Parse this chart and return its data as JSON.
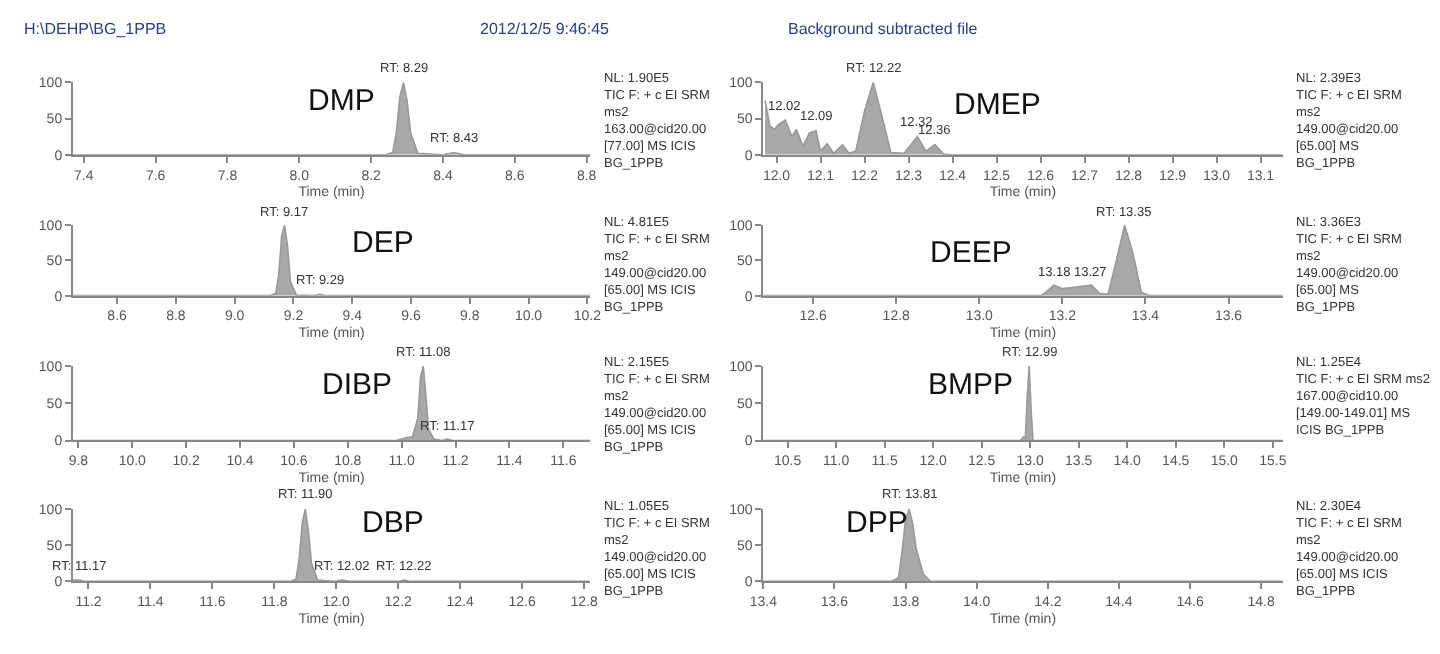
{
  "chart_data": [
    {
      "type": "area",
      "title": "DMP",
      "xlabel": "Time (min)",
      "xlim": [
        7.37,
        8.81
      ],
      "ylim": [
        0,
        100
      ],
      "yticks": [
        0,
        50,
        100
      ],
      "xticks": [
        7.4,
        7.6,
        7.8,
        {
          "value": 8,
          "label": "8.0"
        },
        8.2,
        8.4,
        8.6,
        8.8
      ],
      "x": [
        7.37,
        8.24,
        8.26,
        8.27,
        8.28,
        8.29,
        8.3,
        8.31,
        8.33,
        8.4,
        8.43,
        8.46,
        8.81
      ],
      "series": [
        {
          "color": "#999999",
          "values": [
            0,
            0,
            3,
            30,
            80,
            100,
            75,
            30,
            2,
            0,
            3,
            0,
            0
          ]
        }
      ],
      "annotations": [
        "H:\\DEHP\\BG_1PPB",
        "2012/12/5 9:46:45",
        {
          "text": "RT: 8.29",
          "x": 8.29,
          "y": 100
        },
        {
          "text": "RT: 8.43",
          "x": 8.43,
          "y": 3
        },
        "NL: 1.90E5\nTIC F: + c EI SRM\nms2\n163.00@cid20.00\n[77.00] MS ICIS\nBG_1PPB"
      ]
    },
    {
      "type": "area",
      "title": "DMEP",
      "xlabel": "Time (min)",
      "xlim": [
        11.97,
        13.15
      ],
      "ylim": [
        0,
        100
      ],
      "yticks": [
        0,
        50,
        100
      ],
      "xticks": [
        {
          "value": 12,
          "label": "12.0"
        },
        12.1,
        12.2,
        12.3,
        12.4,
        12.5,
        12.6,
        12.7,
        12.8,
        12.9,
        {
          "value": 13,
          "label": "13.0"
        },
        13.1
      ],
      "x": [
        11.974,
        11.985,
        11.995,
        12.005,
        12.02,
        12.035,
        12.045,
        12.06,
        12.075,
        12.09,
        12.1,
        12.115,
        12.13,
        12.15,
        12.165,
        12.18,
        12.2,
        12.22,
        12.245,
        12.26,
        12.29,
        12.32,
        12.34,
        12.36,
        12.38,
        12.4,
        13.15
      ],
      "series": [
        {
          "color": "#999999",
          "values": [
            75,
            40,
            35,
            42,
            48,
            25,
            35,
            12,
            30,
            33,
            5,
            15,
            2,
            14,
            2,
            5,
            60,
            100,
            40,
            3,
            2,
            25,
            5,
            14,
            1,
            0,
            0
          ]
        }
      ],
      "annotations": [
        "Background subtracted file",
        {
          "text": "RT: 12.22",
          "x": 12.22,
          "y": 100
        },
        {
          "text": "12.02",
          "x": 12.02,
          "y": 48
        },
        {
          "text": "12.09",
          "x": 12.09,
          "y": 33
        },
        {
          "text": "12.32",
          "x": 12.32,
          "y": 25
        },
        {
          "text": "12.36",
          "x": 12.36,
          "y": 14
        },
        "NL: 2.39E3\nTIC F: + c EI SRM\nms2\n149.00@cid20.00\n[65.00] MS\nBG_1PPB"
      ]
    },
    {
      "type": "area",
      "title": "DEP",
      "xlabel": "Time (min)",
      "xlim": [
        8.45,
        10.21
      ],
      "ylim": [
        0,
        100
      ],
      "yticks": [
        0,
        50,
        100
      ],
      "xticks": [
        8.6,
        8.8,
        {
          "value": 9,
          "label": "9.0"
        },
        9.2,
        9.4,
        9.6,
        9.8,
        {
          "value": 10,
          "label": "10.0"
        },
        10.2
      ],
      "x": [
        8.45,
        9.12,
        9.14,
        9.15,
        9.16,
        9.17,
        9.18,
        9.19,
        9.21,
        9.27,
        9.29,
        9.31,
        10.21
      ],
      "series": [
        {
          "color": "#999999",
          "values": [
            0,
            0,
            3,
            30,
            85,
            100,
            70,
            20,
            1,
            0,
            2,
            0,
            0
          ]
        }
      ],
      "annotations": [
        {
          "text": "RT: 9.17",
          "x": 9.17,
          "y": 100
        },
        {
          "text": "RT: 9.29",
          "x": 9.29,
          "y": 2
        },
        "NL: 4.81E5\nTIC F: + c EI SRM\nms2\n149.00@cid20.00\n[65.00] MS ICIS\nBG_1PPB"
      ]
    },
    {
      "type": "area",
      "title": "DEEP",
      "xlabel": "Time (min)",
      "xlim": [
        12.48,
        13.73
      ],
      "ylim": [
        0,
        100
      ],
      "yticks": [
        0,
        50,
        100
      ],
      "xticks": [
        12.6,
        12.8,
        {
          "value": 13,
          "label": "13.0"
        },
        13.2,
        13.4,
        13.6
      ],
      "x": [
        12.48,
        13.15,
        13.18,
        13.2,
        13.23,
        13.27,
        13.29,
        13.31,
        13.33,
        13.35,
        13.37,
        13.39,
        13.41,
        13.73
      ],
      "series": [
        {
          "color": "#999999",
          "values": [
            0,
            0,
            15,
            10,
            12,
            15,
            3,
            2,
            50,
            100,
            60,
            5,
            0,
            0
          ]
        }
      ],
      "annotations": [
        {
          "text": "RT: 13.35",
          "x": 13.35,
          "y": 100
        },
        {
          "text": "13.18",
          "x": 13.18,
          "y": 15
        },
        {
          "text": "13.27",
          "x": 13.27,
          "y": 15
        },
        "NL: 3.36E3\nTIC F: + c EI SRM\nms2\n149.00@cid20.00\n[65.00] MS\nBG_1PPB"
      ]
    },
    {
      "type": "area",
      "title": "DIBP",
      "xlabel": "Time (min)",
      "xlim": [
        9.78,
        11.7
      ],
      "ylim": [
        0,
        100
      ],
      "yticks": [
        0,
        50,
        100
      ],
      "xticks": [
        9.8,
        {
          "value": 10,
          "label": "10.0"
        },
        10.2,
        10.4,
        10.6,
        10.8,
        {
          "value": 11,
          "label": "11.0"
        },
        11.2,
        11.4,
        11.6
      ],
      "x": [
        9.78,
        10.98,
        11.02,
        11.04,
        11.06,
        11.07,
        11.08,
        11.09,
        11.1,
        11.12,
        11.15,
        11.17,
        11.19,
        11.7
      ],
      "series": [
        {
          "color": "#999999",
          "values": [
            0,
            0,
            4,
            5,
            30,
            85,
            100,
            60,
            15,
            2,
            0,
            2,
            0,
            0
          ]
        }
      ],
      "annotations": [
        {
          "text": "RT: 11.08",
          "x": 11.08,
          "y": 100
        },
        {
          "text": "RT: 11.17",
          "x": 11.17,
          "y": 2
        },
        "NL: 2.15E5\nTIC F: + c EI SRM\nms2\n149.00@cid20.00\n[65.00] MS ICIS\nBG_1PPB"
      ]
    },
    {
      "type": "area",
      "title": "BMPP",
      "xlabel": "Time (min)",
      "xlim": [
        10.25,
        15.6
      ],
      "ylim": [
        0,
        100
      ],
      "yticks": [
        0,
        50,
        100
      ],
      "xticks": [
        10.5,
        {
          "value": 11,
          "label": "11.0"
        },
        11.5,
        {
          "value": 12,
          "label": "12.0"
        },
        12.5,
        {
          "value": 13,
          "label": "13.0"
        },
        13.5,
        {
          "value": 14,
          "label": "14.0"
        },
        14.5,
        {
          "value": 15,
          "label": "15.0"
        },
        15.5
      ],
      "x": [
        10.25,
        12.9,
        12.93,
        12.95,
        12.97,
        12.99,
        13.01,
        13.03,
        15.6
      ],
      "series": [
        {
          "color": "#999999",
          "values": [
            0,
            0,
            5,
            3,
            60,
            100,
            40,
            0,
            0
          ]
        }
      ],
      "annotations": [
        {
          "text": "RT: 12.99",
          "x": 12.99,
          "y": 100
        },
        "NL: 1.25E4\nTIC F: + c EI SRM ms2\n167.00@cid10.00\n[149.00-149.01] MS\nICIS BG_1PPB"
      ]
    },
    {
      "type": "area",
      "title": "DBP",
      "xlabel": "Time (min)",
      "xlim": [
        11.15,
        12.82
      ],
      "ylim": [
        0,
        100
      ],
      "yticks": [
        0,
        50,
        100
      ],
      "xticks": [
        11.2,
        11.4,
        11.6,
        11.8,
        {
          "value": 12,
          "label": "12.0"
        },
        12.2,
        12.4,
        12.6,
        12.8
      ],
      "x": [
        11.15,
        11.17,
        11.19,
        11.85,
        11.87,
        11.88,
        11.89,
        11.9,
        11.91,
        11.92,
        11.94,
        11.99,
        12.02,
        12.05,
        12.2,
        12.22,
        12.24,
        12.82
      ],
      "series": [
        {
          "color": "#999999",
          "values": [
            2,
            2,
            0,
            0,
            3,
            30,
            80,
            100,
            70,
            25,
            2,
            0,
            2,
            0,
            0,
            2,
            0,
            0
          ]
        }
      ],
      "annotations": [
        {
          "text": "RT: 11.90",
          "x": 11.9,
          "y": 100
        },
        {
          "text": "RT: 11.17",
          "x": 11.17,
          "y": 2
        },
        {
          "text": "RT: 12.02",
          "x": 12.02,
          "y": 2
        },
        {
          "text": "RT: 12.22",
          "x": 12.22,
          "y": 2
        },
        "NL: 1.05E5\nTIC F: + c EI SRM\nms2\n149.00@cid20.00\n[65.00] MS ICIS\nBG_1PPB"
      ]
    },
    {
      "type": "area",
      "title": "DPP",
      "xlabel": "Time (min)",
      "xlim": [
        13.4,
        14.86
      ],
      "ylim": [
        0,
        100
      ],
      "yticks": [
        0,
        50,
        100
      ],
      "xticks": [
        13.4,
        13.6,
        13.8,
        {
          "value": 14,
          "label": "14.0"
        },
        14.2,
        14.4,
        14.6,
        14.8
      ],
      "x": [
        13.4,
        13.76,
        13.78,
        13.79,
        13.8,
        13.81,
        13.82,
        13.83,
        13.85,
        13.87,
        14.86
      ],
      "series": [
        {
          "color": "#999999",
          "values": [
            0,
            0,
            5,
            40,
            85,
            100,
            80,
            45,
            10,
            0,
            0
          ]
        }
      ],
      "annotations": [
        {
          "text": "RT: 13.81",
          "x": 13.81,
          "y": 100
        },
        "NL: 2.30E4\nTIC F: + c EI SRM\nms2\n149.00@cid20.00\n[65.00] MS ICIS\nBG_1PPB"
      ]
    }
  ]
}
